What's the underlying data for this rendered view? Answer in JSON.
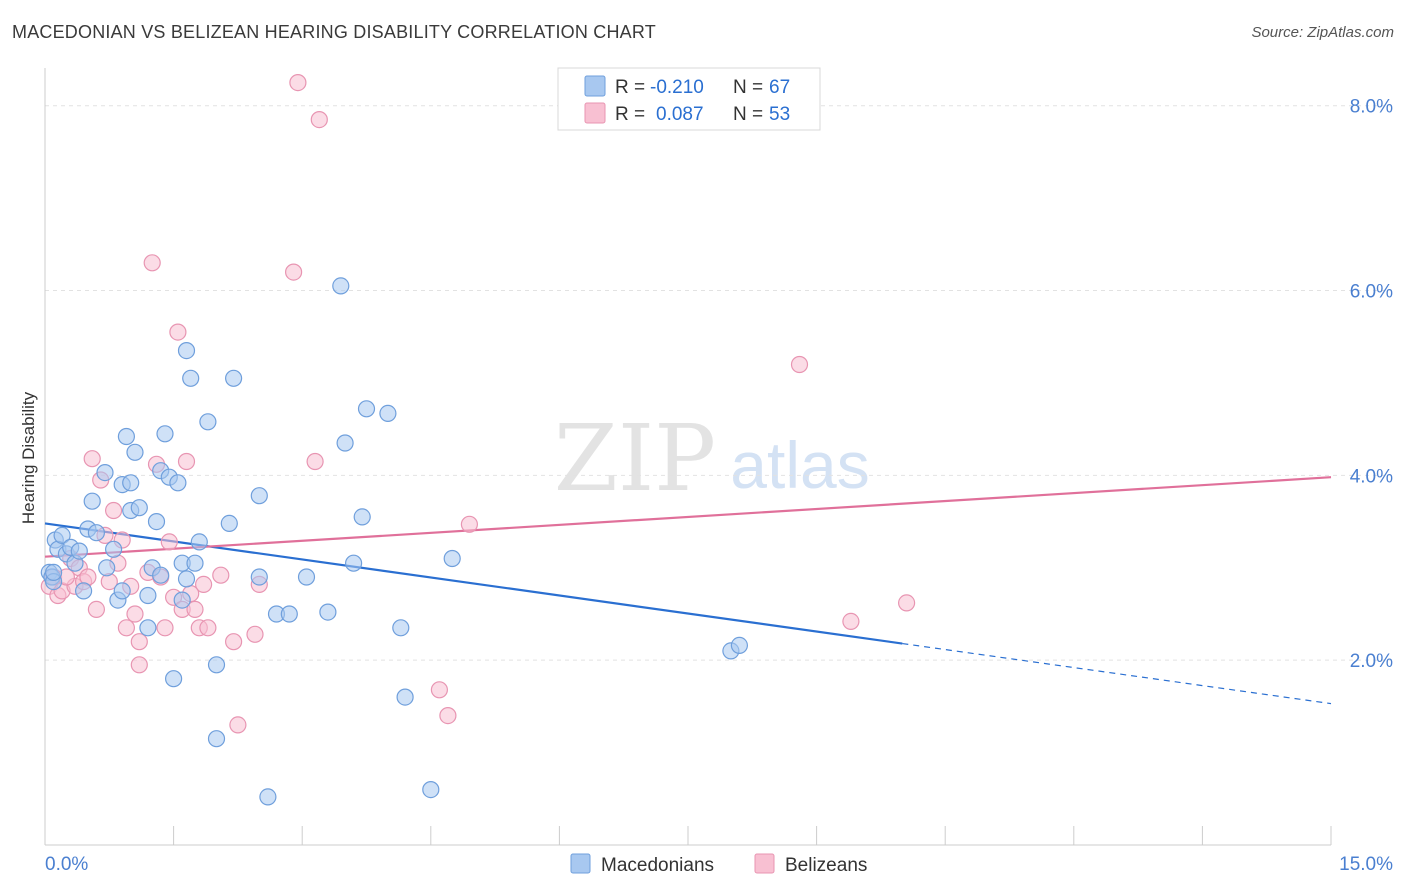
{
  "title": "MACEDONIAN VS BELIZEAN HEARING DISABILITY CORRELATION CHART",
  "source": "Source: ZipAtlas.com",
  "watermark": {
    "zip": "ZIP",
    "atlas": "atlas"
  },
  "colors": {
    "macedonians_fill": "#a8c8f0",
    "macedonians_stroke": "#6f9fdc",
    "macedonians_line": "#2a6fd1",
    "belizeans_fill": "#f8c0d2",
    "belizeans_stroke": "#e895b2",
    "belizeans_line": "#e0709a",
    "axis_label": "#4a7fd0"
  },
  "legend": {
    "rows": [
      {
        "r_label": "R =",
        "r_value": "-0.210",
        "n_label": "N =",
        "n_value": "67"
      },
      {
        "r_label": "R =",
        "r_value": "0.087",
        "n_label": "N =",
        "n_value": "53"
      }
    ]
  },
  "bottom_legend": {
    "macedonians": "Macedonians",
    "belizeans": "Belizeans"
  },
  "chart_data": {
    "type": "scatter",
    "title": "MACEDONIAN VS BELIZEAN HEARING DISABILITY CORRELATION CHART",
    "xlabel": "",
    "ylabel": "Hearing Disability",
    "xlim": [
      0,
      15
    ],
    "ylim": [
      0,
      8.3
    ],
    "x_tick_labels": [
      "0.0%",
      "15.0%"
    ],
    "y_ticks": [
      2,
      4,
      6,
      8
    ],
    "y_tick_labels": [
      "2.0%",
      "4.0%",
      "6.0%",
      "8.0%"
    ],
    "grid": true,
    "series": [
      {
        "name": "Macedonians",
        "r": -0.21,
        "n": 67,
        "trend": {
          "x0": 0,
          "y0": 3.48,
          "x1": 10,
          "y1": 2.18,
          "dashed_to_x": 15,
          "dashed_to_y": 1.53
        },
        "points": [
          [
            0.05,
            2.95
          ],
          [
            0.08,
            2.9
          ],
          [
            0.1,
            2.85
          ],
          [
            0.12,
            3.3
          ],
          [
            0.15,
            3.2
          ],
          [
            0.2,
            3.35
          ],
          [
            0.25,
            3.15
          ],
          [
            0.3,
            3.22
          ],
          [
            0.35,
            3.05
          ],
          [
            0.4,
            3.18
          ],
          [
            0.45,
            2.75
          ],
          [
            0.5,
            3.42
          ],
          [
            0.55,
            3.72
          ],
          [
            0.6,
            3.38
          ],
          [
            0.7,
            4.03
          ],
          [
            0.72,
            3.0
          ],
          [
            0.8,
            3.2
          ],
          [
            0.85,
            2.65
          ],
          [
            0.9,
            2.75
          ],
          [
            0.9,
            3.9
          ],
          [
            0.95,
            4.42
          ],
          [
            1.0,
            3.62
          ],
          [
            1.05,
            4.25
          ],
          [
            1.0,
            3.92
          ],
          [
            1.1,
            3.65
          ],
          [
            1.2,
            2.35
          ],
          [
            1.2,
            2.7
          ],
          [
            1.25,
            3.0
          ],
          [
            1.3,
            3.5
          ],
          [
            1.35,
            2.92
          ],
          [
            1.35,
            4.05
          ],
          [
            1.4,
            4.45
          ],
          [
            1.45,
            3.98
          ],
          [
            1.5,
            1.8
          ],
          [
            1.55,
            3.92
          ],
          [
            1.6,
            3.05
          ],
          [
            1.6,
            2.65
          ],
          [
            1.65,
            2.88
          ],
          [
            1.65,
            5.35
          ],
          [
            1.7,
            5.05
          ],
          [
            1.75,
            3.05
          ],
          [
            1.8,
            3.28
          ],
          [
            1.9,
            4.58
          ],
          [
            2.0,
            1.95
          ],
          [
            2.0,
            1.15
          ],
          [
            2.15,
            3.48
          ],
          [
            2.2,
            5.05
          ],
          [
            2.5,
            3.78
          ],
          [
            2.5,
            2.9
          ],
          [
            2.6,
            0.52
          ],
          [
            2.7,
            2.5
          ],
          [
            2.85,
            2.5
          ],
          [
            3.05,
            2.9
          ],
          [
            3.3,
            2.52
          ],
          [
            3.45,
            6.05
          ],
          [
            3.5,
            4.35
          ],
          [
            3.6,
            3.05
          ],
          [
            3.7,
            3.55
          ],
          [
            3.75,
            4.72
          ],
          [
            4.0,
            4.67
          ],
          [
            4.15,
            2.35
          ],
          [
            4.2,
            1.6
          ],
          [
            4.5,
            0.6
          ],
          [
            4.75,
            3.1
          ],
          [
            8.0,
            2.1
          ],
          [
            8.1,
            2.16
          ],
          [
            0.1,
            2.95
          ]
        ]
      },
      {
        "name": "Belizeans",
        "r": 0.087,
        "n": 53,
        "trend": {
          "x0": 0,
          "y0": 3.12,
          "x1": 15,
          "y1": 3.98
        },
        "points": [
          [
            0.05,
            2.8
          ],
          [
            0.1,
            2.9
          ],
          [
            0.15,
            2.7
          ],
          [
            0.2,
            2.75
          ],
          [
            0.3,
            3.1
          ],
          [
            0.35,
            2.8
          ],
          [
            0.4,
            3.0
          ],
          [
            0.45,
            2.85
          ],
          [
            0.5,
            2.9
          ],
          [
            0.55,
            4.18
          ],
          [
            0.6,
            2.55
          ],
          [
            0.65,
            3.95
          ],
          [
            0.7,
            3.35
          ],
          [
            0.75,
            2.85
          ],
          [
            0.8,
            3.62
          ],
          [
            0.85,
            3.05
          ],
          [
            0.9,
            3.3
          ],
          [
            0.95,
            2.35
          ],
          [
            1.0,
            2.8
          ],
          [
            1.05,
            2.5
          ],
          [
            1.1,
            2.2
          ],
          [
            1.1,
            1.95
          ],
          [
            1.2,
            2.95
          ],
          [
            1.25,
            6.3
          ],
          [
            1.3,
            4.12
          ],
          [
            1.35,
            2.9
          ],
          [
            1.4,
            2.35
          ],
          [
            1.45,
            3.28
          ],
          [
            1.5,
            2.68
          ],
          [
            1.55,
            5.55
          ],
          [
            1.6,
            2.55
          ],
          [
            1.65,
            4.15
          ],
          [
            1.7,
            2.72
          ],
          [
            1.75,
            2.55
          ],
          [
            1.8,
            2.35
          ],
          [
            1.85,
            2.82
          ],
          [
            1.9,
            2.35
          ],
          [
            2.05,
            2.92
          ],
          [
            2.2,
            2.2
          ],
          [
            2.25,
            1.3
          ],
          [
            2.45,
            2.28
          ],
          [
            2.5,
            2.82
          ],
          [
            2.9,
            6.2
          ],
          [
            2.95,
            8.25
          ],
          [
            3.15,
            4.15
          ],
          [
            3.2,
            7.85
          ],
          [
            4.6,
            1.68
          ],
          [
            4.7,
            1.4
          ],
          [
            4.95,
            3.47
          ],
          [
            8.8,
            5.2
          ],
          [
            9.4,
            2.42
          ],
          [
            10.05,
            2.62
          ],
          [
            0.25,
            2.9
          ]
        ]
      }
    ]
  }
}
